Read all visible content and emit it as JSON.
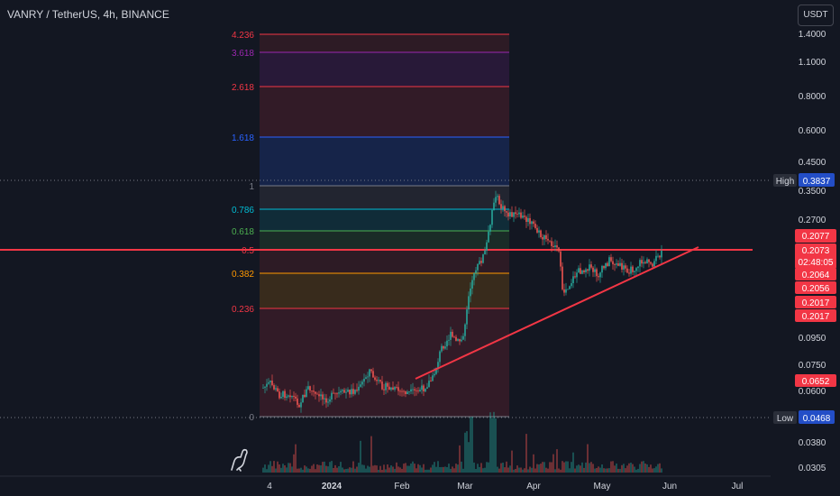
{
  "header": {
    "symbol": "VANRY / TetherUS, 4h, BINANCE"
  },
  "currency_button": "USDT",
  "price_axis": {
    "ticks": [
      "1.4000",
      "1.1000",
      "0.8000",
      "0.6000",
      "0.4500",
      "0.3500",
      "0.2700",
      "0.0950",
      "0.0750",
      "0.0600",
      "0.0380",
      "0.0305"
    ],
    "high_label": "High",
    "high_value": "0.3837",
    "low_label": "Low",
    "low_value": "0.0468",
    "badges": [
      "0.2077",
      "0.2073",
      "02:48:05",
      "0.2064",
      "0.2056",
      "0.2017",
      "0.2017",
      "0.0652"
    ]
  },
  "time_axis": [
    "4",
    "2024",
    "Feb",
    "Mar",
    "Apr",
    "May",
    "Jun",
    "Jul"
  ],
  "fib_levels": [
    {
      "label": "4.236",
      "color": "#f23645"
    },
    {
      "label": "3.618",
      "color": "#9c27b0"
    },
    {
      "label": "2.618",
      "color": "#f23645"
    },
    {
      "label": "1.618",
      "color": "#2962ff"
    },
    {
      "label": "1",
      "color": "#787b86"
    },
    {
      "label": "0.786",
      "color": "#00bcd4"
    },
    {
      "label": "0.618",
      "color": "#4caf50"
    },
    {
      "label": "0.5",
      "color": "#f23645"
    },
    {
      "label": "0.382",
      "color": "#ff9800"
    },
    {
      "label": "0.236",
      "color": "#f23645"
    },
    {
      "label": "0",
      "color": "#787b86"
    }
  ],
  "colors": {
    "up": "#26a69a",
    "down": "#ef5350",
    "trend": "#f23645",
    "background": "#131722"
  }
}
